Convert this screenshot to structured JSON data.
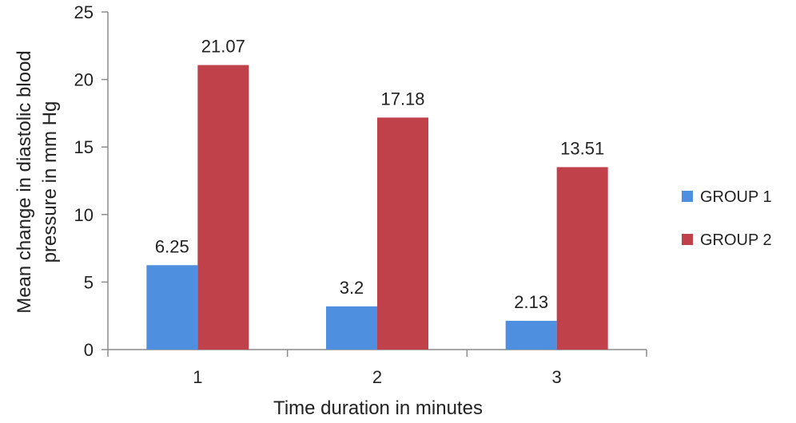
{
  "chart_data": {
    "type": "bar",
    "title": "",
    "xlabel": "Time duration in minutes",
    "ylabel_lines": [
      "Mean change in diastolic blood",
      "pressure in mm Hg"
    ],
    "ylabel": "Mean change in diastolic blood pressure in mm Hg",
    "categories": [
      "1",
      "2",
      "3"
    ],
    "series": [
      {
        "name": "GROUP 1",
        "color": "#4f8fdf",
        "values": [
          6.25,
          3.2,
          2.13
        ],
        "labels": [
          "6.25",
          "3.2",
          "2.13"
        ]
      },
      {
        "name": "GROUP 2",
        "color": "#c0414a",
        "values": [
          21.07,
          17.18,
          13.51
        ],
        "labels": [
          "21.07",
          "17.18",
          "13.51"
        ]
      }
    ],
    "ylim": [
      0,
      25
    ],
    "yticks": [
      0,
      5,
      10,
      15,
      20,
      25
    ],
    "grid": false,
    "legend_position": "right"
  }
}
